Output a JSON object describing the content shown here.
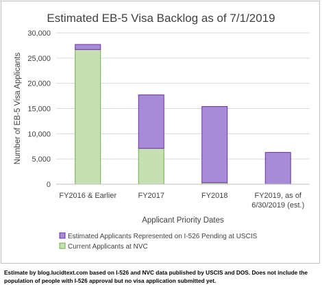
{
  "chart_data": {
    "type": "bar",
    "stacked": true,
    "title": "Estimated EB-5 Visa Backlog as of 7/1/2019",
    "xlabel": "Applicant Priority Dates",
    "ylabel": "Number of EB-5 Visa Applicants",
    "ylim": [
      0,
      30000
    ],
    "yticks": [
      0,
      5000,
      10000,
      15000,
      20000,
      25000,
      30000
    ],
    "ytick_labels": [
      "0",
      "5,000",
      "10,000",
      "15,000",
      "20,000",
      "25,000",
      "30,000"
    ],
    "categories": [
      [
        "FY2016 & Earlier"
      ],
      [
        "FY2017"
      ],
      [
        "FY2018"
      ],
      [
        "FY2019, as of",
        "6/30/2019 (est.)"
      ]
    ],
    "series": [
      {
        "name": "Current Applicants at NVC",
        "color": "#c6e0b4",
        "stroke": "#70ad47",
        "values": [
          26700,
          7100,
          300,
          0
        ]
      },
      {
        "name": "Estimated Applicants Represented on I-526 Pending at USCIS",
        "color": "#a68bd6",
        "stroke": "#7030a0",
        "values": [
          1000,
          10600,
          15100,
          6300
        ]
      }
    ],
    "legend_position": "bottom",
    "gridlines": true
  },
  "footnote": "Estimate by blog.lucidtext.com based on I-526 and NVC data published by USCIS and DOS. Does not include the population of people with I-526 approval but no visa application submitted yet."
}
